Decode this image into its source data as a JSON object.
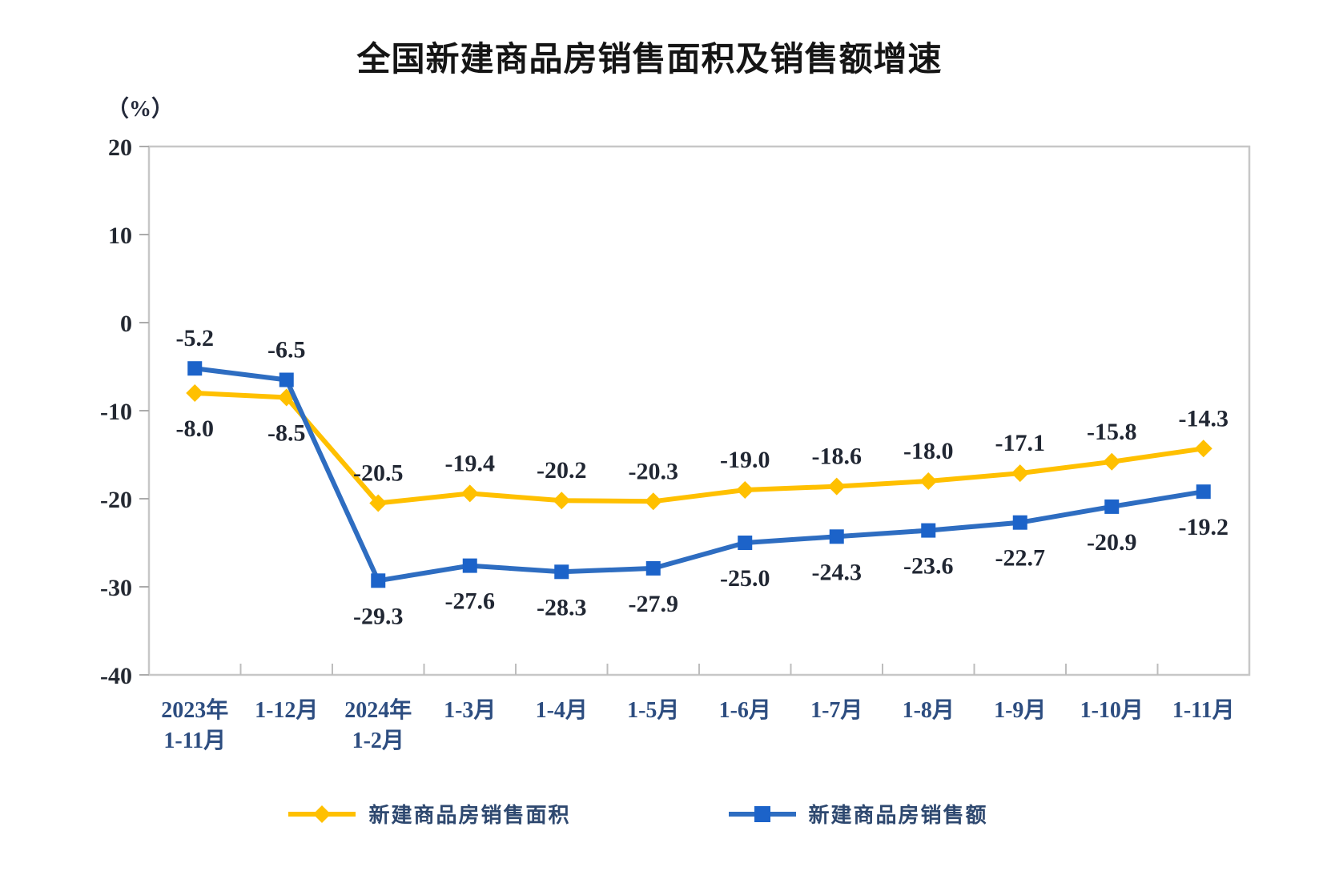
{
  "title": "全国新建商品房销售面积及销售额增速",
  "y_axis": {
    "unit_label": "（%）"
  },
  "chart_data": {
    "type": "line",
    "title": "全国新建商品房销售面积及销售额增速",
    "y_unit": "（%）",
    "ylabel": "",
    "xlabel": "",
    "ylim": [
      -40,
      20
    ],
    "yticks": [
      20,
      10,
      0,
      -10,
      -20,
      -30,
      -40
    ],
    "grid": false,
    "legend_position": "bottom",
    "categories": [
      [
        "2023年",
        "1-11月"
      ],
      [
        "1-12月"
      ],
      [
        "2024年",
        "1-2月"
      ],
      [
        "1-3月"
      ],
      [
        "1-4月"
      ],
      [
        "1-5月"
      ],
      [
        "1-6月"
      ],
      [
        "1-7月"
      ],
      [
        "1-8月"
      ],
      [
        "1-9月"
      ],
      [
        "1-10月"
      ],
      [
        "1-11月"
      ]
    ],
    "series": [
      {
        "name": "新建商品房销售面积",
        "color": "#FFC000",
        "marker": "diamond",
        "marker_color": "#FFC000",
        "values": [
          -8.0,
          -8.5,
          -20.5,
          -19.4,
          -20.2,
          -20.3,
          -19.0,
          -18.6,
          -18.0,
          -17.1,
          -15.8,
          -14.3
        ],
        "label_position": [
          "below",
          "below",
          "above",
          "above",
          "above",
          "above",
          "above",
          "above",
          "above",
          "above",
          "above",
          "above"
        ]
      },
      {
        "name": "新建商品房销售额",
        "color": "#2E6DC1",
        "marker": "square",
        "marker_color": "#1C63C9",
        "values": [
          -5.2,
          -6.5,
          -29.3,
          -27.6,
          -28.3,
          -27.9,
          -25.0,
          -24.3,
          -23.6,
          -22.7,
          -20.9,
          -19.2
        ],
        "label_position": [
          "above",
          "above",
          "below",
          "below",
          "below",
          "below",
          "below",
          "below",
          "below",
          "below",
          "below",
          "below"
        ]
      }
    ],
    "colors": {
      "plot_border": "#c7c7c7",
      "data_label_text": "#212733",
      "x_label_text": "#2d4d80",
      "title_text": "#151515"
    }
  }
}
